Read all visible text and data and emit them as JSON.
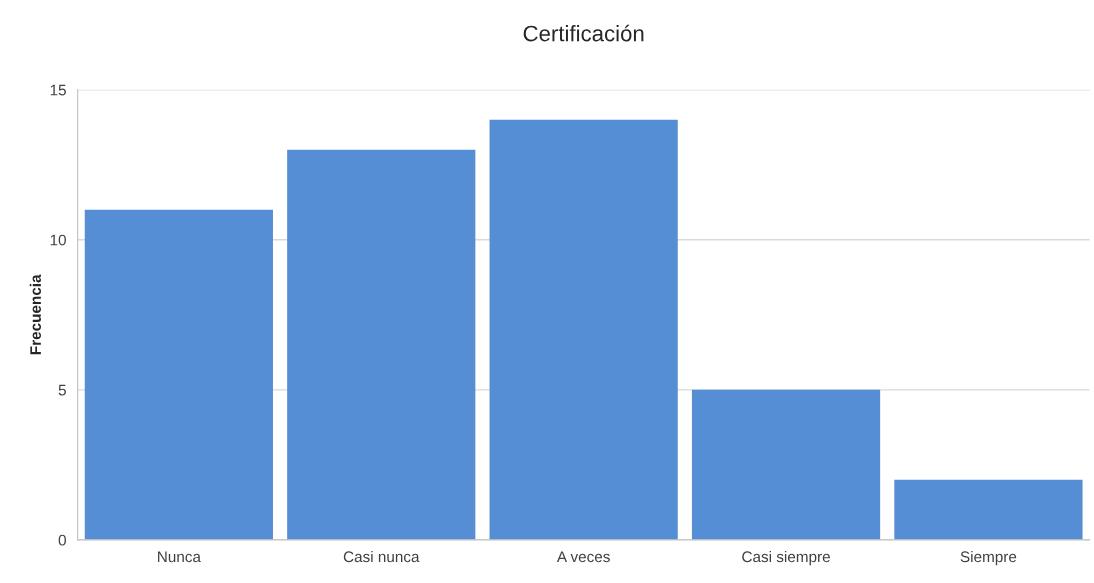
{
  "chart_data": {
    "type": "bar",
    "title": "Certificación",
    "ylabel": "Frecuencia",
    "categories": [
      "Nunca",
      "Casi nunca",
      "A veces",
      "Casi siempre",
      "Siempre"
    ],
    "values": [
      11,
      13,
      14,
      5,
      2
    ],
    "color": "#558ed5",
    "ylim": [
      0,
      15
    ],
    "yticks": [
      0,
      5,
      10,
      15
    ],
    "grid": "y",
    "legend": false
  }
}
